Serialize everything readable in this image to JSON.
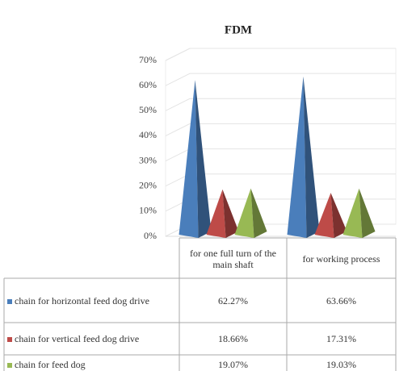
{
  "chart_data": {
    "type": "pyramid3d",
    "title": "FDM",
    "categories": [
      "for one full turn of the main shaft",
      "for working process"
    ],
    "series": [
      {
        "name": "chain for horizontal feed dog drive",
        "color": "#4a7ebb",
        "values": [
          62.27,
          63.66
        ],
        "value_labels": [
          "62.27%",
          "63.66%"
        ]
      },
      {
        "name": "chain for vertical feed dog drive",
        "color": "#be4b48",
        "values": [
          18.66,
          17.31
        ],
        "value_labels": [
          "18.66%",
          "17.31%"
        ]
      },
      {
        "name": "chain for feed dog",
        "color": "#98b954",
        "values": [
          19.07,
          19.03
        ],
        "value_labels": [
          "19.07%",
          "19.03%"
        ]
      }
    ],
    "ylim": [
      0,
      70
    ],
    "yticks": [
      {
        "value": 0,
        "label": "0%"
      },
      {
        "value": 10,
        "label": "10%"
      },
      {
        "value": 20,
        "label": "20%"
      },
      {
        "value": 30,
        "label": "30%"
      },
      {
        "value": 40,
        "label": "40%"
      },
      {
        "value": 50,
        "label": "50%"
      },
      {
        "value": 60,
        "label": "60%"
      },
      {
        "value": 70,
        "label": "70%"
      }
    ],
    "grid": true
  }
}
